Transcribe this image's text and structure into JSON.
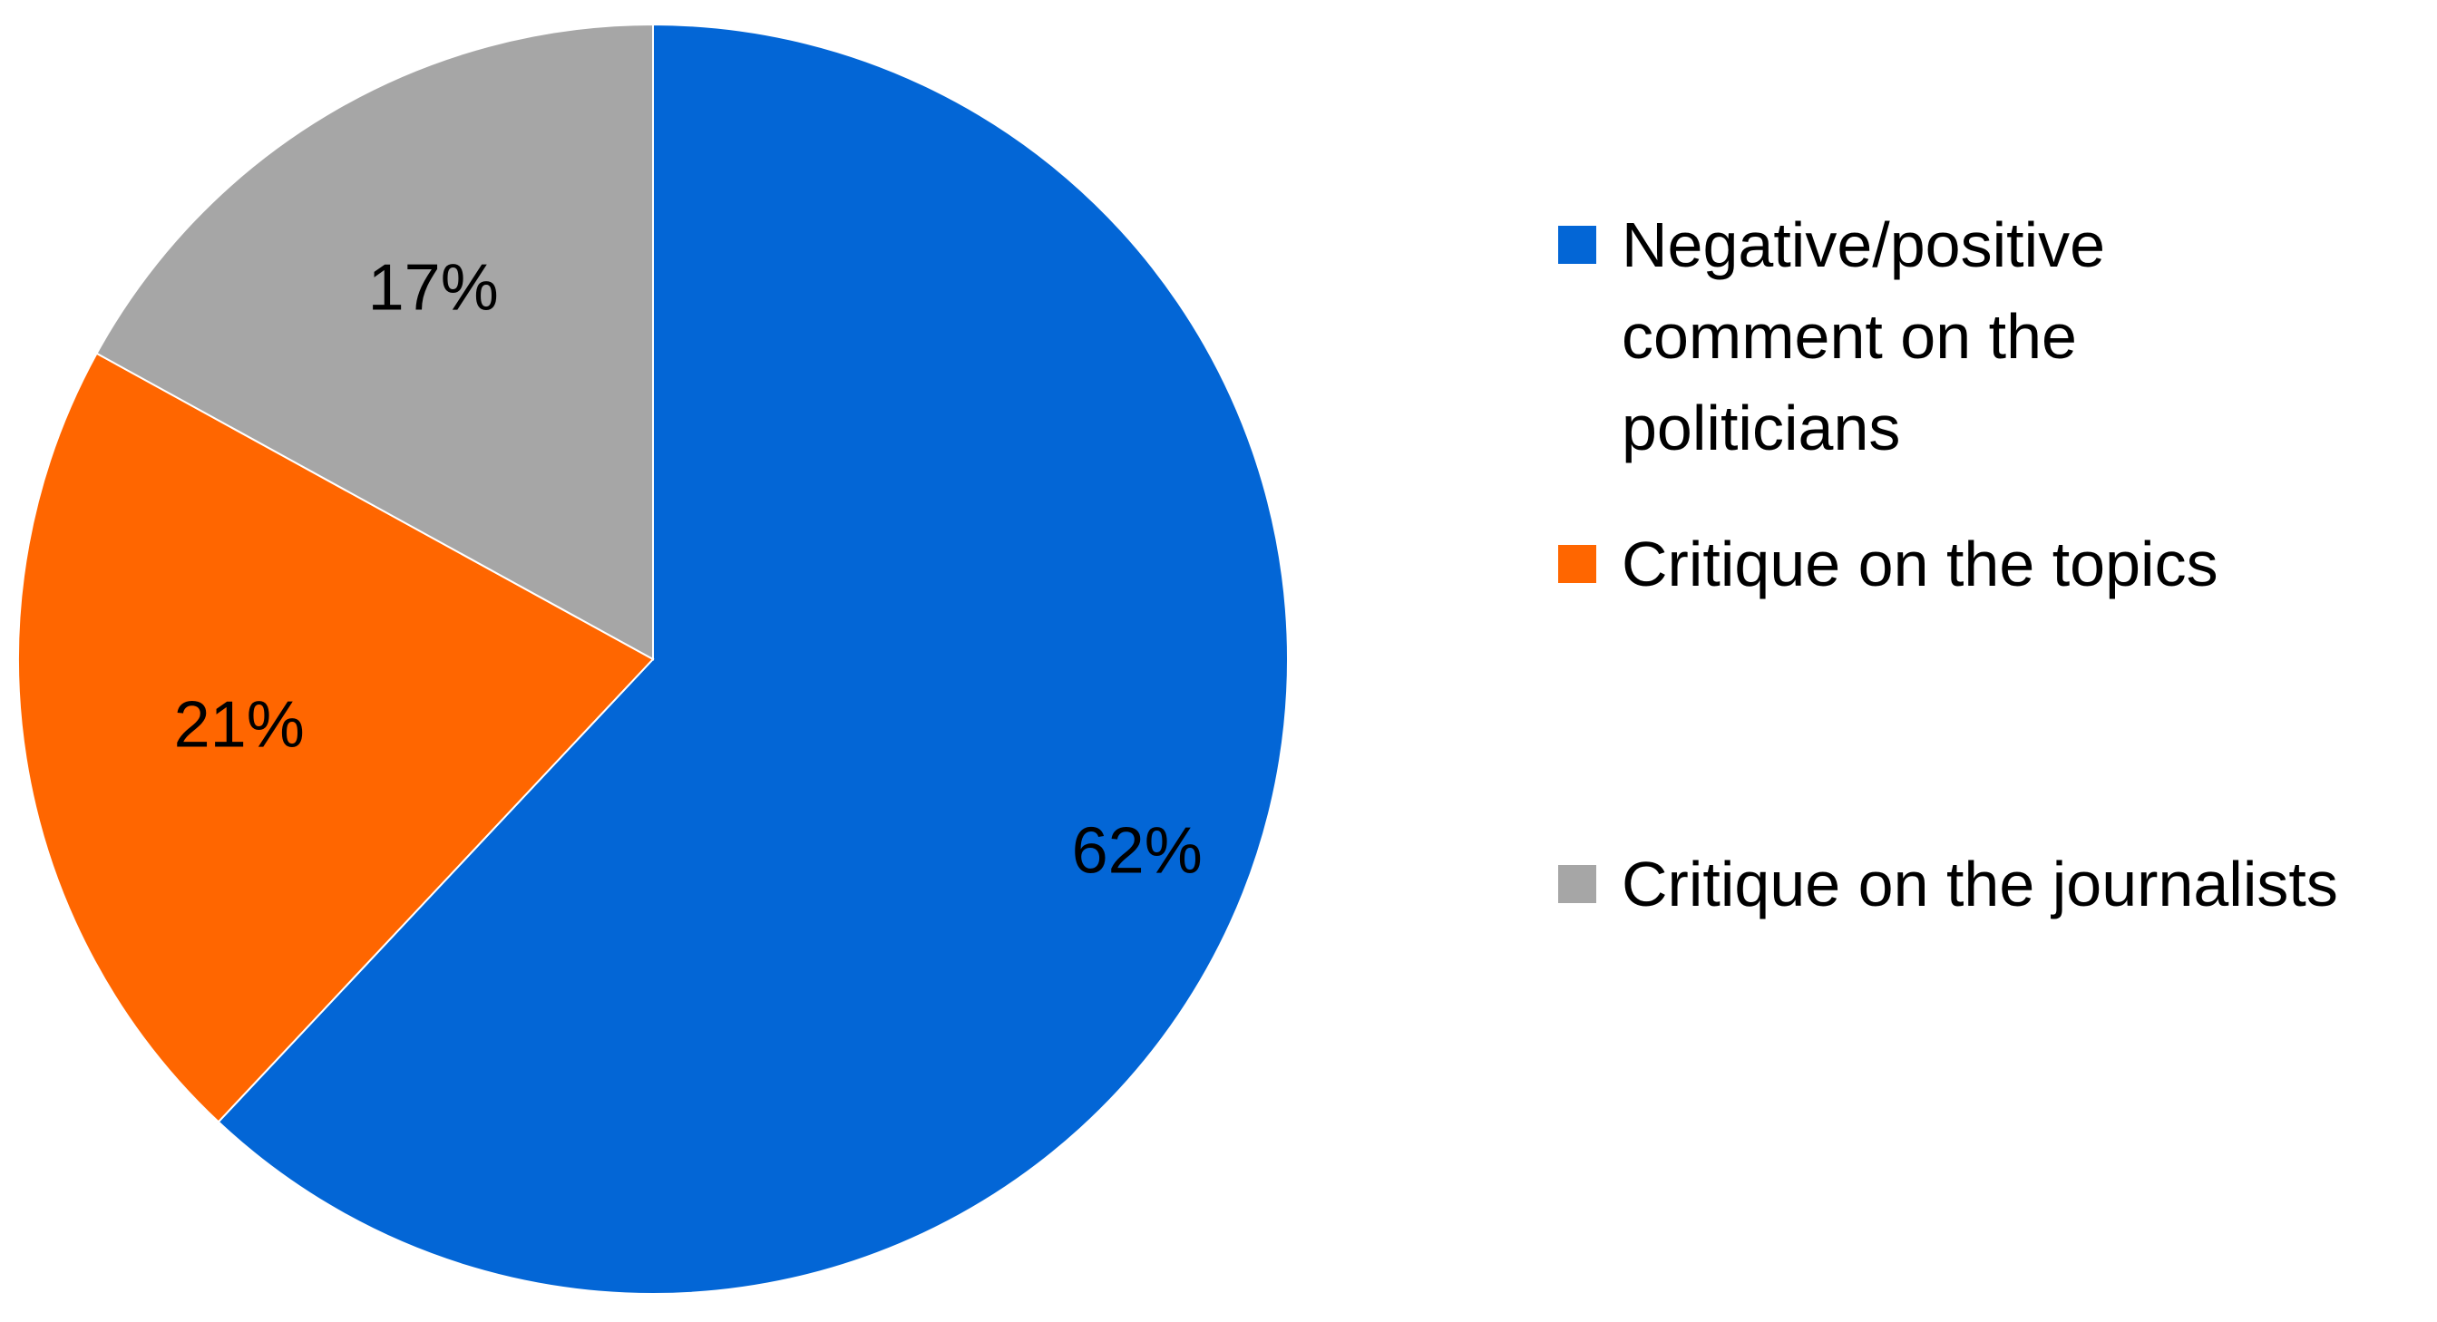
{
  "chart_data": {
    "type": "pie",
    "start_angle": "12 o'clock",
    "direction": "clockwise",
    "legend_position": "right",
    "slices": [
      {
        "name": "Negative/positive comment on the politicians",
        "legend_lines": [
          "Negative/positive",
          "comment on the",
          "politicians"
        ],
        "value": 62,
        "label": "62%",
        "color": "#0366d6"
      },
      {
        "name": "Critique on the topics",
        "legend_lines": [
          "Critique on the topics"
        ],
        "value": 21,
        "label": "21%",
        "color": "#ff6600"
      },
      {
        "name": "Critique on the journalists",
        "legend_lines": [
          "Critique on the journalists"
        ],
        "value": 17,
        "label": "17%",
        "color": "#a6a6a6"
      }
    ]
  }
}
